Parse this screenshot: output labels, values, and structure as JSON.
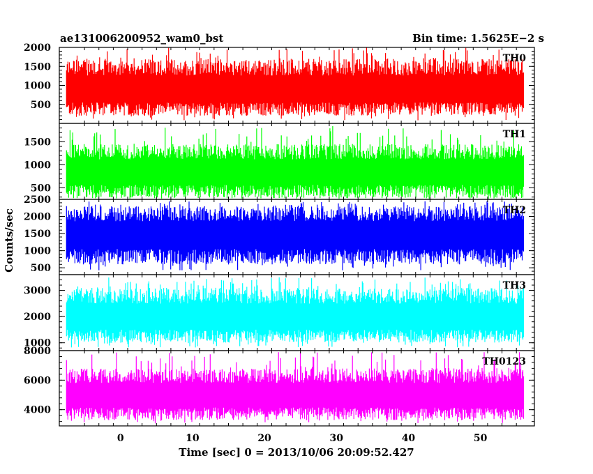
{
  "chart_data": {
    "type": "line",
    "title": "ae131006200952_wam0_bst",
    "bin_time_label": "Bin time: 1.5625E−2 s",
    "xlabel": "Time [sec] 0 = 2013/10/06 20:09:52.427",
    "ylabel": "Counts/sec",
    "xlim": [
      -8.5,
      57.5
    ],
    "x_ticks": [
      0,
      10,
      20,
      30,
      40,
      50
    ],
    "data_x_range": [
      -7.5,
      56.0
    ],
    "grid": false,
    "panels": [
      {
        "name": "TH0",
        "color": "#ff0000",
        "ylim": [
          0,
          2000
        ],
        "y_ticks": [
          500,
          1000,
          1500,
          2000
        ],
        "y_tick_labels": [
          "500",
          "1000",
          "1500",
          "2000"
        ],
        "mean": 900,
        "low": 200,
        "high": 1700,
        "spike_max": 2000
      },
      {
        "name": "TH1",
        "color": "#00ff00",
        "ylim": [
          250,
          1900
        ],
        "y_ticks": [
          500,
          1000,
          1500
        ],
        "y_tick_labels": [
          "500",
          "1000",
          "1500"
        ],
        "mean": 850,
        "low": 280,
        "high": 1450,
        "spike_max": 1850
      },
      {
        "name": "TH2",
        "color": "#0000ff",
        "ylim": [
          300,
          2500
        ],
        "y_ticks": [
          500,
          1000,
          1500,
          2000,
          2500
        ],
        "y_tick_labels": [
          "500",
          "1000",
          "1500",
          "2000",
          "2500"
        ],
        "mean": 1500,
        "low": 600,
        "high": 2300,
        "spike_max": 2450
      },
      {
        "name": "TH3",
        "color": "#00ffff",
        "ylim": [
          700,
          3600
        ],
        "y_ticks": [
          1000,
          2000,
          3000
        ],
        "y_tick_labels": [
          "1000",
          "2000",
          "3000"
        ],
        "mean": 2000,
        "low": 1000,
        "high": 3100,
        "spike_max": 3500
      },
      {
        "name": "TH0123",
        "color": "#ff00ff",
        "ylim": [
          2900,
          8000
        ],
        "y_ticks": [
          4000,
          6000,
          8000
        ],
        "y_tick_labels": [
          "4000",
          "6000",
          "8000"
        ],
        "mean": 5000,
        "low": 3300,
        "high": 6800,
        "spike_max": 7900
      }
    ]
  }
}
